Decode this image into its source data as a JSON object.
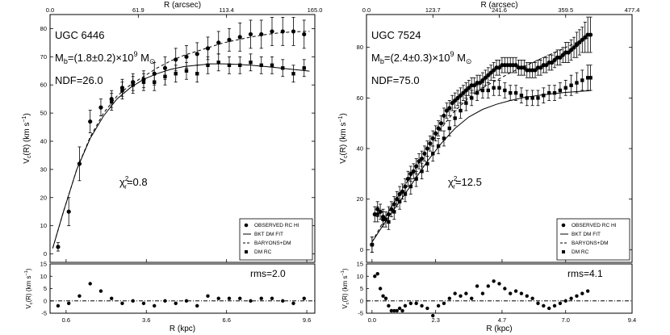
{
  "chart_data": [
    {
      "type": "scatter",
      "galaxy": "UGC 6446",
      "mass_text": "M₀=(1.8±0.2)×10⁹ M⊙",
      "mass_parts": {
        "label": "M",
        "sub": "b",
        "value": "=(1.8±0.2)×10",
        "exp": "9",
        "unit": " M",
        "unit_sub": "⊙"
      },
      "ndf": "NDF=26.0",
      "chi2": {
        "symbol": "χ",
        "sup": "2",
        "sub": "r",
        "value": "=0.8"
      },
      "rms": "rms=2.0",
      "xlabel": "R (kpc)",
      "top_xlabel": "R (arcsec)",
      "ylabel": "Vₙ(R) (km s⁻¹)",
      "ylabel_parts": {
        "main": "V",
        "sub": "c",
        "rest": "(R) (km s",
        "sup": "−1",
        "close": ")"
      },
      "xlim": [
        0,
        9.9
      ],
      "ylim": [
        -3,
        85
      ],
      "resid_ylim": [
        -5,
        15
      ],
      "x_ticks": [
        "0.6",
        "3.6",
        "6.6",
        "9.6"
      ],
      "x_tick_values": [
        0.6,
        3.6,
        6.6,
        9.6
      ],
      "top_ticks": [
        "0.0",
        "61.9",
        "113.4",
        "165.0"
      ],
      "y_ticks": [
        0,
        10,
        20,
        30,
        40,
        50,
        60,
        70,
        80
      ],
      "resid_ticks": [
        -5,
        0,
        5,
        10,
        15
      ],
      "legend": [
        "OBSERVED RC HI",
        "BKT DM FIT",
        "BARYONS+DM",
        "DM RC"
      ],
      "observed": {
        "x": [
          0.3,
          0.7,
          1.1,
          1.5,
          1.9,
          2.3,
          2.7,
          3.1,
          3.5,
          3.9,
          4.3,
          4.7,
          5.1,
          5.5,
          5.9,
          6.3,
          6.7,
          7.1,
          7.5,
          7.9,
          8.3,
          8.7,
          9.1,
          9.5
        ],
        "y": [
          2.5,
          15,
          32,
          47,
          52,
          55,
          59,
          61,
          62,
          64,
          66,
          69,
          70,
          71,
          73,
          75,
          76,
          77,
          78,
          78,
          79,
          79,
          79,
          78
        ],
        "err": [
          1.5,
          5,
          6,
          4,
          3,
          3,
          3,
          3,
          3,
          4,
          4,
          4,
          4,
          4,
          4,
          4,
          4,
          5,
          5,
          5,
          5,
          5,
          5,
          5
        ]
      },
      "dm_rc": {
        "x": [
          2.3,
          2.7,
          3.1,
          3.5,
          3.9,
          4.3,
          4.7,
          5.1,
          5.5,
          5.9,
          6.3,
          6.7,
          7.1,
          7.5,
          7.9,
          8.3,
          8.7,
          9.1,
          9.5
        ],
        "y": [
          54,
          58,
          60,
          61,
          61,
          63,
          64,
          65,
          64,
          67,
          68,
          67,
          67,
          68,
          67,
          67,
          66,
          64,
          66
        ],
        "err": [
          3,
          3,
          3,
          3,
          3,
          3,
          3,
          3,
          3,
          3,
          3,
          3,
          3,
          3,
          3,
          3,
          3,
          3,
          3
        ]
      },
      "bkt_fit": {
        "x": [
          0.1,
          0.5,
          1.0,
          1.5,
          2.0,
          2.5,
          3.0,
          3.5,
          4.0,
          4.5,
          5.0,
          5.5,
          6.0,
          6.5,
          7.0,
          7.5,
          8.0,
          8.5,
          9.0,
          9.5,
          9.7
        ],
        "y": [
          2,
          15,
          30,
          41,
          49,
          55,
          59,
          62,
          64,
          65.5,
          66.5,
          67,
          67.5,
          67.5,
          67.3,
          67,
          66.6,
          66.1,
          65.6,
          65.1,
          64.9
        ]
      },
      "baryons_dm": {
        "x": [
          0.1,
          0.5,
          1.0,
          1.5,
          2.0,
          2.5,
          3.0,
          3.5,
          4.0,
          4.5,
          5.0,
          5.5,
          6.0,
          6.5,
          7.0,
          7.5,
          8.0,
          8.5,
          9.0,
          9.5,
          9.7
        ],
        "y": [
          2,
          15,
          30,
          41.5,
          50,
          56,
          60,
          63,
          66,
          68.5,
          70.5,
          72,
          73.5,
          75,
          76,
          77,
          77.8,
          78.4,
          78.8,
          79,
          79
        ]
      },
      "residuals": {
        "x": [
          0.3,
          0.7,
          1.1,
          1.5,
          1.9,
          2.3,
          2.7,
          3.1,
          3.5,
          3.9,
          4.3,
          4.7,
          5.1,
          5.5,
          5.9,
          6.3,
          6.7,
          7.1,
          7.5,
          7.9,
          8.3,
          8.7,
          9.1,
          9.5
        ],
        "y": [
          -2,
          -1,
          2,
          7,
          4,
          1,
          -1,
          0,
          -1,
          -2,
          0,
          -1,
          0,
          -2,
          2,
          1,
          1,
          1,
          0,
          1,
          1,
          0,
          -1,
          1
        ]
      }
    },
    {
      "type": "scatter",
      "galaxy": "UGC 7524",
      "mass_parts": {
        "label": "M",
        "sub": "b",
        "value": "=(2.4±0.3)×10",
        "exp": "9",
        "unit": " M",
        "unit_sub": "⊙"
      },
      "ndf": "NDF=75.0",
      "chi2": {
        "symbol": "χ",
        "sup": "2",
        "sub": "r",
        "value": "=12.5"
      },
      "rms": "rms=4.1",
      "xlabel": "R (kpc)",
      "top_xlabel": "R (arcsec)",
      "ylabel_parts": {
        "main": "V",
        "sub": "c",
        "rest": "(R) (km s",
        "sup": "−1",
        "close": ")"
      },
      "xlim": [
        -0.2,
        9.4
      ],
      "ylim": [
        -5,
        93
      ],
      "resid_ylim": [
        -5,
        15
      ],
      "x_ticks": [
        "0.0",
        "2.3",
        "4.7",
        "7.0",
        "9.4"
      ],
      "x_tick_values": [
        0.0,
        2.3,
        4.7,
        7.0,
        9.4
      ],
      "top_ticks": [
        "0.0",
        "123.7",
        "241.6",
        "359.5",
        "477.4"
      ],
      "y_ticks": [
        0,
        20,
        40,
        60,
        80
      ],
      "resid_ticks": [
        -5,
        0,
        5,
        10,
        15
      ],
      "legend": [
        "OBSERVED RC HI",
        "BKT DM FIT",
        "BARYONS+DM",
        "DM RC"
      ],
      "observed": {
        "x": [
          0.0,
          0.1,
          0.2,
          0.3,
          0.4,
          0.5,
          0.6,
          0.7,
          0.8,
          0.9,
          1.0,
          1.1,
          1.2,
          1.3,
          1.4,
          1.5,
          1.6,
          1.7,
          1.8,
          1.9,
          2.0,
          2.1,
          2.2,
          2.3,
          2.4,
          2.5,
          2.6,
          2.7,
          2.8,
          2.9,
          3.0,
          3.1,
          3.2,
          3.3,
          3.4,
          3.5,
          3.6,
          3.7,
          3.8,
          3.9,
          4.0,
          4.1,
          4.2,
          4.3,
          4.4,
          4.5,
          4.6,
          4.7,
          4.8,
          4.9,
          5.0,
          5.1,
          5.2,
          5.3,
          5.4,
          5.5,
          5.6,
          5.7,
          5.8,
          5.9,
          6.0,
          6.1,
          6.2,
          6.3,
          6.4,
          6.5,
          6.6,
          6.7,
          6.8,
          6.9,
          7.0,
          7.1,
          7.2,
          7.3,
          7.4,
          7.5,
          7.6,
          7.7,
          7.8,
          7.9
        ],
        "y": [
          2,
          14,
          16,
          15,
          13,
          12,
          14,
          16,
          18,
          20,
          22,
          23,
          25,
          28,
          30,
          31,
          33,
          35,
          36,
          38,
          40,
          42,
          44,
          46,
          48,
          50,
          53,
          55,
          56,
          58,
          59,
          60,
          61,
          62,
          63,
          64,
          65,
          65,
          66,
          66,
          67,
          68,
          69,
          70,
          71,
          72,
          72,
          73,
          73,
          73,
          73,
          73,
          73,
          72,
          72,
          72,
          71,
          71,
          71,
          71,
          72,
          72,
          73,
          73,
          74,
          74,
          75,
          76,
          76,
          77,
          78,
          78,
          79,
          80,
          81,
          82,
          83,
          84,
          85,
          85
        ],
        "err": [
          3,
          3,
          3,
          3,
          3,
          3,
          3,
          3,
          3,
          3,
          3,
          3,
          3,
          3,
          3,
          3,
          3,
          3,
          3,
          3,
          3,
          3,
          3,
          3,
          3,
          3,
          3,
          3,
          3,
          3,
          3,
          3,
          3,
          3,
          3,
          3,
          3,
          3,
          3,
          3,
          3,
          3,
          3,
          3,
          3,
          3,
          3,
          3,
          3,
          3,
          3,
          3,
          3,
          3,
          3,
          3,
          3,
          3,
          3,
          3,
          3,
          3,
          3,
          3,
          3,
          3,
          3,
          3,
          3,
          3,
          4,
          4,
          4,
          4,
          5,
          5,
          5,
          6,
          7,
          7
        ]
      },
      "dm_rc": {
        "x": [
          0.0,
          0.2,
          0.4,
          0.6,
          0.8,
          1.0,
          1.2,
          1.4,
          1.6,
          1.8,
          2.0,
          2.2,
          2.4,
          2.6,
          2.8,
          3.0,
          3.2,
          3.4,
          3.6,
          3.8,
          4.0,
          4.2,
          4.4,
          4.6,
          4.8,
          5.0,
          5.2,
          5.4,
          5.6,
          5.8,
          6.0,
          6.2,
          6.4,
          6.6,
          6.8,
          7.0,
          7.2,
          7.4,
          7.6,
          7.8,
          7.9
        ],
        "y": [
          2,
          14,
          12,
          11,
          15,
          19,
          22,
          25,
          28,
          31,
          34,
          38,
          41,
          44,
          48,
          52,
          55,
          58,
          60,
          62,
          63,
          63,
          64,
          64,
          63,
          62,
          62,
          61,
          60,
          60,
          60,
          61,
          62,
          62,
          63,
          64,
          65,
          66,
          67,
          68,
          68
        ],
        "err": [
          3,
          3,
          3,
          3,
          3,
          3,
          3,
          3,
          3,
          3,
          3,
          3,
          3,
          3,
          3,
          3,
          3,
          3,
          3,
          3,
          3,
          3,
          3,
          3,
          3,
          3,
          3,
          3,
          3,
          3,
          3,
          3,
          3,
          3,
          3,
          3,
          4,
          4,
          4,
          5,
          5
        ]
      },
      "bkt_fit": {
        "x": [
          0.0,
          0.3,
          0.6,
          1.0,
          1.5,
          2.0,
          2.5,
          3.0,
          3.5,
          4.0,
          4.5,
          5.0,
          5.5,
          6.0,
          6.5,
          7.0,
          7.5,
          7.9
        ],
        "y": [
          3,
          8,
          13,
          19,
          27,
          35,
          42,
          48,
          52.5,
          55.5,
          57.5,
          59,
          60.2,
          61,
          61.7,
          62.2,
          62.6,
          62.9
        ]
      },
      "baryons_dm": {
        "x": [
          0.0,
          0.3,
          0.6,
          1.0,
          1.5,
          2.0,
          2.5,
          3.0,
          3.5,
          4.0,
          4.5,
          5.0,
          5.5,
          6.0,
          6.5,
          7.0,
          7.5,
          7.9
        ],
        "y": [
          3,
          9,
          15,
          22,
          31,
          40,
          48,
          55,
          60,
          64,
          67,
          70,
          72.5,
          75,
          77.5,
          80,
          82.5,
          84
        ]
      },
      "residuals": {
        "x": [
          0.1,
          0.2,
          0.3,
          0.4,
          0.5,
          0.6,
          0.7,
          0.8,
          0.9,
          1.0,
          1.1,
          1.2,
          1.4,
          1.6,
          1.8,
          2.0,
          2.2,
          2.4,
          2.6,
          2.8,
          3.0,
          3.2,
          3.4,
          3.6,
          3.8,
          4.0,
          4.2,
          4.4,
          4.6,
          4.8,
          5.0,
          5.2,
          5.4,
          5.6,
          5.8,
          6.0,
          6.2,
          6.4,
          6.6,
          6.8,
          7.0,
          7.2,
          7.4,
          7.6,
          7.8
        ],
        "y": [
          10,
          11,
          5,
          2,
          1,
          -2,
          -4,
          -4,
          -4,
          -3,
          -4,
          -2,
          -1,
          -1,
          -2,
          -3,
          -6,
          -2,
          -1,
          1,
          3,
          2,
          3,
          1,
          6,
          3,
          6,
          8,
          7,
          5,
          3,
          4,
          3,
          2,
          1,
          -1,
          -2,
          -3,
          -2,
          -1,
          0,
          1,
          2,
          3,
          4
        ]
      }
    }
  ]
}
